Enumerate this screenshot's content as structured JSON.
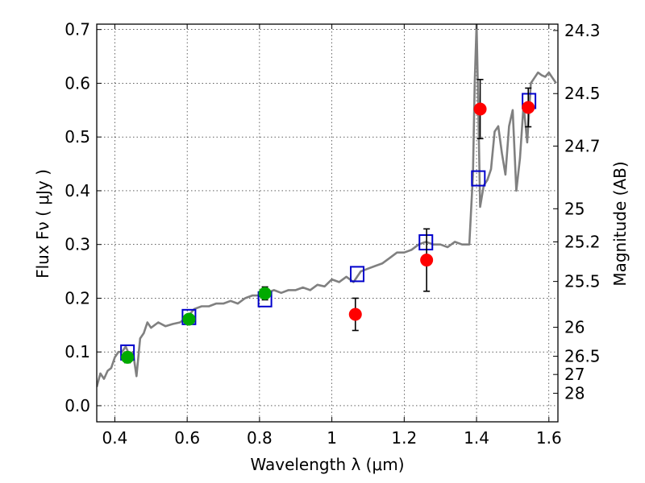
{
  "chart_data": {
    "type": "scatter",
    "title": "",
    "xlabel": "Wavelength  λ (μm)",
    "ylabel": "Flux  Fν  ( μJy )",
    "ylabel_right": "Magnitude (AB)",
    "xlim": [
      0.35,
      1.625
    ],
    "ylim": [
      -0.03,
      0.71
    ],
    "grid": true,
    "x_ticks": [
      0.4,
      0.6,
      0.8,
      1.0,
      1.2,
      1.4,
      1.6
    ],
    "x_tick_labels": [
      "0.4",
      "0.6",
      "0.8",
      "1",
      "1.2",
      "1.4",
      "1.6"
    ],
    "y_ticks": [
      0.0,
      0.1,
      0.2,
      0.3,
      0.4,
      0.5,
      0.6,
      0.7
    ],
    "y_tick_labels": [
      "0.0",
      "0.1",
      "0.2",
      "0.3",
      "0.4",
      "0.5",
      "0.6",
      "0.7"
    ],
    "right_ticks": [
      {
        "label": "24.3",
        "flux": 0.6982
      },
      {
        "label": "24.5",
        "flux": 0.5808
      },
      {
        "label": "24.7",
        "flux": 0.4831
      },
      {
        "label": "25",
        "flux": 0.3665
      },
      {
        "label": "25.2",
        "flux": 0.3048
      },
      {
        "label": "25.5",
        "flux": 0.2312
      },
      {
        "label": "26",
        "flux": 0.1459
      },
      {
        "label": "26.5",
        "flux": 0.092
      },
      {
        "label": "27",
        "flux": 0.0581
      },
      {
        "label": "28",
        "flux": 0.0231
      }
    ],
    "colors": {
      "spectrum": "#808080",
      "model_box": "#0000cc",
      "green_points": "#00aa00",
      "red_points": "#ff0000",
      "errorbar": "#000000"
    },
    "series": [
      {
        "kind": "line",
        "x": [
          0.35,
          0.36,
          0.37,
          0.38,
          0.39,
          0.4,
          0.41,
          0.42,
          0.43,
          0.44,
          0.45,
          0.46,
          0.47,
          0.48,
          0.49,
          0.5,
          0.52,
          0.54,
          0.56,
          0.58,
          0.6,
          0.62,
          0.64,
          0.66,
          0.68,
          0.7,
          0.72,
          0.74,
          0.76,
          0.78,
          0.8,
          0.82,
          0.84,
          0.86,
          0.88,
          0.9,
          0.92,
          0.94,
          0.96,
          0.98,
          1.0,
          1.02,
          1.04,
          1.06,
          1.08,
          1.1,
          1.12,
          1.14,
          1.16,
          1.18,
          1.2,
          1.22,
          1.24,
          1.26,
          1.28,
          1.3,
          1.32,
          1.34,
          1.36,
          1.38,
          1.39,
          1.395,
          1.4,
          1.405,
          1.41,
          1.42,
          1.43,
          1.44,
          1.45,
          1.46,
          1.47,
          1.48,
          1.49,
          1.5,
          1.51,
          1.52,
          1.53,
          1.54,
          1.55,
          1.56,
          1.57,
          1.58,
          1.59,
          1.6,
          1.61,
          1.62
        ],
        "y": [
          0.035,
          0.06,
          0.05,
          0.065,
          0.07,
          0.09,
          0.1,
          0.1,
          0.11,
          0.095,
          0.1,
          0.055,
          0.125,
          0.135,
          0.155,
          0.145,
          0.155,
          0.148,
          0.152,
          0.155,
          0.165,
          0.18,
          0.185,
          0.185,
          0.19,
          0.19,
          0.195,
          0.19,
          0.2,
          0.205,
          0.205,
          0.21,
          0.215,
          0.21,
          0.215,
          0.215,
          0.22,
          0.215,
          0.225,
          0.222,
          0.235,
          0.23,
          0.24,
          0.23,
          0.25,
          0.255,
          0.26,
          0.265,
          0.275,
          0.285,
          0.285,
          0.29,
          0.3,
          0.305,
          0.3,
          0.3,
          0.295,
          0.305,
          0.3,
          0.3,
          0.43,
          0.6,
          0.71,
          0.55,
          0.37,
          0.41,
          0.42,
          0.44,
          0.51,
          0.52,
          0.47,
          0.43,
          0.52,
          0.55,
          0.4,
          0.46,
          0.56,
          0.49,
          0.6,
          0.61,
          0.62,
          0.615,
          0.612,
          0.62,
          0.61,
          0.6
        ]
      },
      {
        "kind": "open-square",
        "x": [
          0.435,
          0.605,
          0.815,
          1.07,
          1.26,
          1.405,
          1.545
        ],
        "y": [
          0.099,
          0.165,
          0.198,
          0.245,
          0.304,
          0.423,
          0.567
        ]
      },
      {
        "kind": "point",
        "color": "green",
        "x": [
          0.435,
          0.605,
          0.815
        ],
        "y": [
          0.09,
          0.161,
          0.209
        ],
        "err": [
          0.01,
          0.008,
          0.012
        ]
      },
      {
        "kind": "point",
        "color": "red",
        "x": [
          1.065,
          1.262,
          1.41,
          1.543
        ],
        "y": [
          0.17,
          0.271,
          0.552,
          0.555
        ],
        "err": [
          0.03,
          0.058,
          0.055,
          0.036
        ]
      }
    ]
  }
}
